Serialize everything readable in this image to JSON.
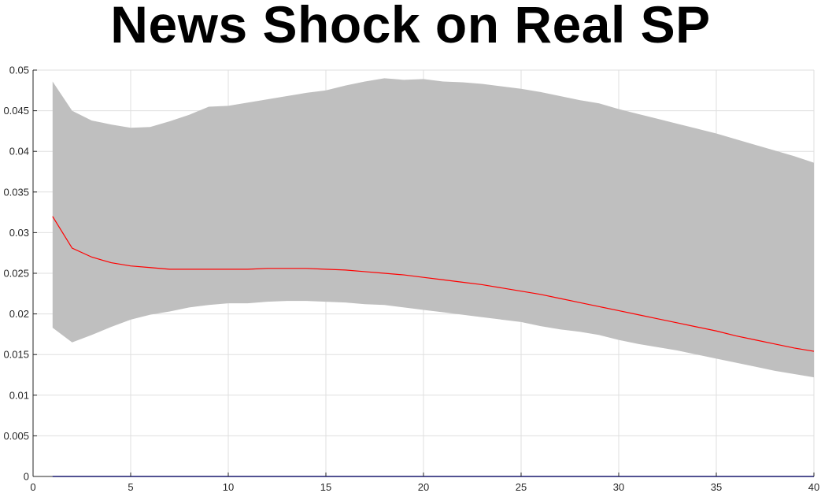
{
  "chart_data": {
    "type": "area",
    "title": "News Shock on Real SP",
    "xlabel": "",
    "ylabel": "",
    "xlim": [
      0,
      40
    ],
    "ylim": [
      0,
      0.05
    ],
    "grid": true,
    "x_ticks": [
      "0",
      "5",
      "10",
      "15",
      "20",
      "25",
      "30",
      "35",
      "40"
    ],
    "y_ticks": [
      "0",
      "0.005",
      "0.01",
      "0.015",
      "0.02",
      "0.025",
      "0.03",
      "0.035",
      "0.04",
      "0.045",
      "0.05"
    ],
    "x": [
      1,
      2,
      3,
      4,
      5,
      6,
      7,
      8,
      9,
      10,
      11,
      12,
      13,
      14,
      15,
      16,
      17,
      18,
      19,
      20,
      21,
      22,
      23,
      24,
      25,
      26,
      27,
      28,
      29,
      30,
      31,
      32,
      33,
      34,
      35,
      36,
      37,
      38,
      39,
      40
    ],
    "series": [
      {
        "role": "band_upper",
        "values": [
          0.0486,
          0.045,
          0.0438,
          0.0433,
          0.0429,
          0.043,
          0.0437,
          0.0445,
          0.0455,
          0.0456,
          0.046,
          0.0464,
          0.0468,
          0.0472,
          0.0475,
          0.0481,
          0.0486,
          0.049,
          0.0488,
          0.0489,
          0.0486,
          0.0485,
          0.0483,
          0.048,
          0.0477,
          0.0473,
          0.0468,
          0.0463,
          0.0459,
          0.0452,
          0.0446,
          0.044,
          0.0434,
          0.0428,
          0.0422,
          0.0415,
          0.0408,
          0.0401,
          0.0394,
          0.0386
        ]
      },
      {
        "role": "band_lower",
        "values": [
          0.0183,
          0.0165,
          0.0174,
          0.0184,
          0.0193,
          0.0199,
          0.0203,
          0.0208,
          0.0211,
          0.0213,
          0.0213,
          0.0215,
          0.0216,
          0.0216,
          0.0215,
          0.0214,
          0.0212,
          0.0211,
          0.0208,
          0.0205,
          0.0202,
          0.0199,
          0.0196,
          0.0193,
          0.019,
          0.0185,
          0.0181,
          0.0178,
          0.0174,
          0.0168,
          0.0163,
          0.0159,
          0.0155,
          0.015,
          0.0145,
          0.014,
          0.0135,
          0.013,
          0.0126,
          0.0122
        ]
      },
      {
        "role": "median",
        "color": "#ff0000",
        "values": [
          0.032,
          0.0281,
          0.027,
          0.0263,
          0.0259,
          0.0257,
          0.0255,
          0.0255,
          0.0255,
          0.0255,
          0.0255,
          0.0256,
          0.0256,
          0.0256,
          0.0255,
          0.0254,
          0.0252,
          0.025,
          0.0248,
          0.0245,
          0.0242,
          0.0239,
          0.0236,
          0.0232,
          0.0228,
          0.0224,
          0.0219,
          0.0214,
          0.0209,
          0.0204,
          0.0199,
          0.0194,
          0.0189,
          0.0184,
          0.0179,
          0.0173,
          0.0168,
          0.0163,
          0.0158,
          0.0154
        ]
      },
      {
        "role": "zero_line",
        "color": "#0000ff",
        "values": [
          0,
          0,
          0,
          0,
          0,
          0,
          0,
          0,
          0,
          0,
          0,
          0,
          0,
          0,
          0,
          0,
          0,
          0,
          0,
          0,
          0,
          0,
          0,
          0,
          0,
          0,
          0,
          0,
          0,
          0,
          0,
          0,
          0,
          0,
          0,
          0,
          0,
          0,
          0,
          0
        ]
      }
    ],
    "band_color": "#bfbfbf"
  }
}
